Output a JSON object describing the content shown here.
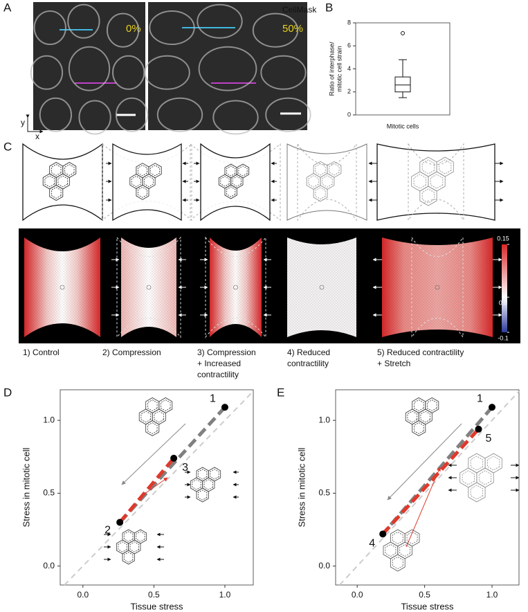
{
  "panel_labels": [
    "A",
    "B",
    "C",
    "D",
    "E"
  ],
  "panel_a": {
    "channel": "CellMask",
    "strain_labels": [
      "0%",
      "50%"
    ],
    "axis_labels": [
      "y",
      "x"
    ]
  },
  "panel_c": {
    "conditions": [
      [
        "1) Control"
      ],
      [
        "2) Compression"
      ],
      [
        "3) Compression",
        "+ Increased",
        "contractility"
      ],
      [
        "4) Reduced",
        "contractility"
      ],
      [
        "5) Reduced contractility",
        "+ Stretch"
      ]
    ],
    "colorbar": {
      "lim": [
        -0.1,
        0.15
      ],
      "ticks": [
        0.15,
        {
          "value": 0,
          "label": "0.0"
        },
        -0.1
      ],
      "colors": [
        "#2b3a9c",
        "#ffffff",
        "#d8282a"
      ]
    }
  },
  "chart_data": [
    {
      "type": "box",
      "ylabel": [
        "Ratio of interphase/",
        "mitotic cell strain"
      ],
      "categories": [
        "Mitotic cells"
      ],
      "ylim": [
        0,
        8
      ],
      "yticks": [
        0,
        2,
        4,
        6,
        8
      ],
      "boxes": [
        {
          "whisker_low": 1.5,
          "q1": 2.0,
          "median": 2.6,
          "q3": 3.3,
          "whisker_high": 4.8,
          "outliers": [
            7.1
          ]
        }
      ]
    },
    {
      "type": "line",
      "xlabel": "Tissue stress",
      "ylabel": "Stress in mitotic cell",
      "xlim": [
        -0.16,
        1.2
      ],
      "ylim": [
        -0.13,
        1.21
      ],
      "xticks": [
        {
          "value": 0,
          "label": "0.0"
        },
        0.5,
        {
          "value": 1,
          "label": "1.0"
        }
      ],
      "yticks": [
        {
          "value": 0,
          "label": "0.0"
        },
        0.5,
        {
          "value": 1,
          "label": "1.0"
        }
      ],
      "identity_line": true,
      "series": [
        {
          "color": "#808080",
          "x": [
            1.0,
            0.26
          ],
          "values": [
            1.09,
            0.3
          ]
        },
        {
          "color": "#e0392b",
          "x": [
            0.26,
            0.64
          ],
          "values": [
            0.3,
            0.74
          ]
        }
      ],
      "points": {
        "x": [
          1.0,
          0.64,
          0.26
        ],
        "y": [
          1.09,
          0.74,
          0.3
        ],
        "labels": [
          "1",
          "3",
          "2"
        ],
        "color": "#000000"
      }
    },
    {
      "type": "line",
      "xlabel": "Tissue stress",
      "ylabel": "Stress in mitotic cell",
      "xlim": [
        -0.16,
        1.2
      ],
      "ylim": [
        -0.13,
        1.21
      ],
      "xticks": [
        {
          "value": 0,
          "label": "0.0"
        },
        0.5,
        {
          "value": 1,
          "label": "1.0"
        }
      ],
      "yticks": [
        {
          "value": 0,
          "label": "0.0"
        },
        0.5,
        {
          "value": 1,
          "label": "1.0"
        }
      ],
      "identity_line": true,
      "series": [
        {
          "color": "#808080",
          "x": [
            1.0,
            0.19
          ],
          "values": [
            1.09,
            0.22
          ]
        },
        {
          "color": "#e0392b",
          "x": [
            0.19,
            0.9
          ],
          "values": [
            0.22,
            0.94
          ]
        }
      ],
      "points": {
        "x": [
          1.0,
          0.9,
          0.19
        ],
        "y": [
          1.09,
          0.94,
          0.22
        ],
        "labels": [
          "1",
          "5",
          "4"
        ],
        "color": "#000000"
      }
    }
  ]
}
